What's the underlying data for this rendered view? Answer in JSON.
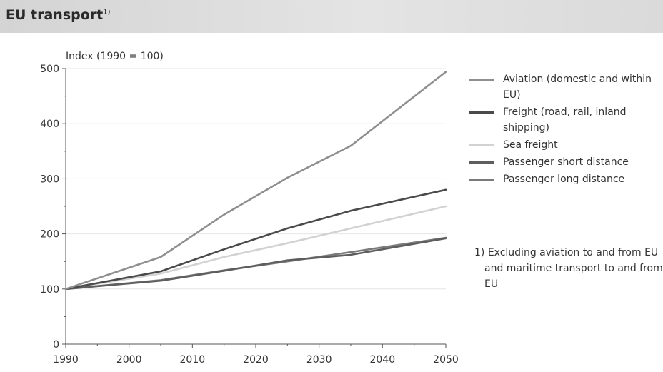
{
  "header": {
    "title": "EU transport",
    "title_note": "1)"
  },
  "chart_data": {
    "type": "line",
    "ylabel": "Index (1990 = 100)",
    "xlabel": "",
    "xlim": [
      1990,
      2050
    ],
    "ylim": [
      0,
      500
    ],
    "x_ticks": [
      1990,
      2000,
      2010,
      2020,
      2030,
      2040,
      2050
    ],
    "y_ticks": [
      0,
      100,
      200,
      300,
      400,
      500
    ],
    "grid": "horizontal",
    "legend_position": "right",
    "x": [
      1990,
      2005,
      2015,
      2025,
      2035,
      2050
    ],
    "series": [
      {
        "name": "Aviation (domestic and within EU)",
        "color": "#8f8f8f",
        "values": [
          100,
          158,
          235,
          302,
          360,
          494
        ]
      },
      {
        "name": "Freight (road, rail, inland shipping)",
        "color": "#4a4a4a",
        "values": [
          100,
          132,
          172,
          210,
          242,
          280
        ]
      },
      {
        "name": "Sea freight",
        "color": "#d2d2d2",
        "values": [
          100,
          128,
          158,
          183,
          210,
          250
        ]
      },
      {
        "name": "Passenger short distance",
        "color": "#5e5e5e",
        "values": [
          100,
          115,
          133,
          152,
          162,
          192
        ]
      },
      {
        "name": "Passenger long distance",
        "color": "#7a7a7a",
        "values": [
          100,
          116,
          134,
          150,
          167,
          193
        ]
      }
    ]
  },
  "footnote": "1) Excluding aviation to and from EU and maritime transport to and from EU"
}
